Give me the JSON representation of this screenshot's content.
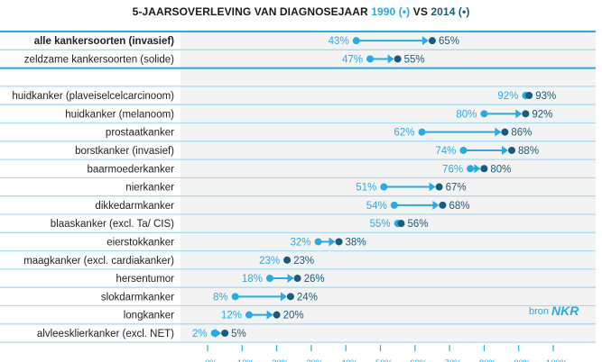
{
  "title": {
    "prefix": "5-JAARSOVERLEVING VAN DIAGNOSEJAAR",
    "year1": "1990",
    "marker1": "(•)",
    "vs": "VS",
    "year2": "2014",
    "marker2": "(•)"
  },
  "source": {
    "prefix": "bron",
    "name": "NKR"
  },
  "colors": {
    "y1990": "#29abe2",
    "y2014": "#1b5a7a",
    "grid": "#a9dcf1",
    "groupline": "#29abe2",
    "bg": "#f3f3f3"
  },
  "chart_data": {
    "type": "dumbbell",
    "title": "5-jaarsoverleving van diagnosejaar 1990 (•) vs 2014 (•)",
    "xlabel": "",
    "ylabel": "",
    "xlim": [
      0,
      100
    ],
    "x_ticks": [
      "0%",
      "10%",
      "20%",
      "30%",
      "40%",
      "50%",
      "60%",
      "70%",
      "80%",
      "90%",
      "100%"
    ],
    "series": [
      {
        "name": "1990",
        "color": "#29abe2"
      },
      {
        "name": "2014",
        "color": "#1b5a7a"
      }
    ],
    "rows": [
      {
        "label": "alle kankersoorten (invasief)",
        "bold": true,
        "v1990": 43,
        "v2014": 65
      },
      {
        "label": "zeldzame kankersoorten (solide)",
        "bold": false,
        "v1990": 47,
        "v2014": 55
      },
      {
        "label": "",
        "bold": false,
        "v1990": null,
        "v2014": null
      },
      {
        "label": "huidkanker (plaveiselcelcarcinoom)",
        "bold": false,
        "v1990": 92,
        "v2014": 93
      },
      {
        "label": "huidkanker (melanoom)",
        "bold": false,
        "v1990": 80,
        "v2014": 92
      },
      {
        "label": "prostaatkanker",
        "bold": false,
        "v1990": 62,
        "v2014": 86
      },
      {
        "label": "borstkanker (invasief)",
        "bold": false,
        "v1990": 74,
        "v2014": 88
      },
      {
        "label": "baarmoederkanker",
        "bold": false,
        "v1990": 76,
        "v2014": 80
      },
      {
        "label": "nierkanker",
        "bold": false,
        "v1990": 51,
        "v2014": 67
      },
      {
        "label": "dikkedarmkanker",
        "bold": false,
        "v1990": 54,
        "v2014": 68
      },
      {
        "label": "blaaskanker (excl. Ta/ CIS)",
        "bold": false,
        "v1990": 55,
        "v2014": 56
      },
      {
        "label": "eierstokkanker",
        "bold": false,
        "v1990": 32,
        "v2014": 38
      },
      {
        "label": "maagkanker (excl. cardiakanker)",
        "bold": false,
        "v1990": 23,
        "v2014": 23
      },
      {
        "label": "hersentumor",
        "bold": false,
        "v1990": 18,
        "v2014": 26
      },
      {
        "label": "slokdarmkanker",
        "bold": false,
        "v1990": 8,
        "v2014": 24
      },
      {
        "label": "longkanker",
        "bold": false,
        "v1990": 12,
        "v2014": 20
      },
      {
        "label": "alvleesklierkanker (excl. NET)",
        "bold": false,
        "v1990": 2,
        "v2014": 5
      }
    ]
  }
}
